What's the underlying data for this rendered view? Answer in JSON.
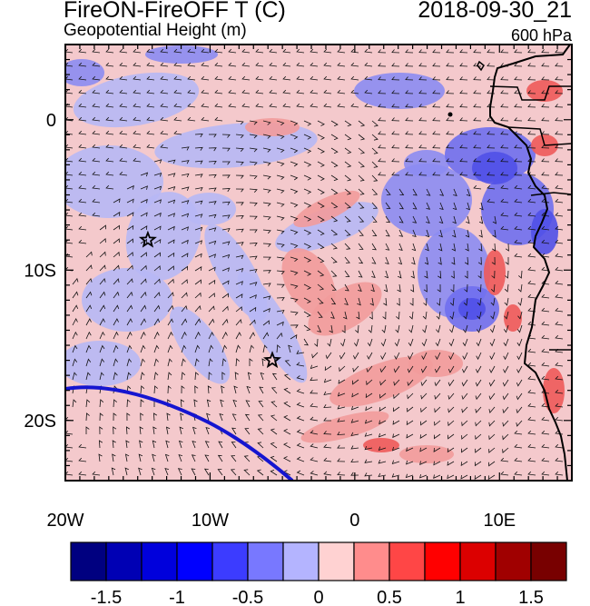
{
  "title": "FireON-FireOFF T (C)",
  "subtitle": "Geopotential Height (m)",
  "datetime": "2018-09-30_21",
  "level": "600 hPa",
  "map": {
    "lon_range": [
      -20,
      15
    ],
    "lat_range": [
      -24,
      5
    ],
    "x_ticks": [
      {
        "value": -20,
        "label": "20W"
      },
      {
        "value": -10,
        "label": "10W"
      },
      {
        "value": 0,
        "label": "0"
      },
      {
        "value": 10,
        "label": "10E"
      }
    ],
    "y_ticks": [
      {
        "value": 0,
        "label": "0"
      },
      {
        "value": -10,
        "label": "10S"
      },
      {
        "value": -20,
        "label": "20S"
      }
    ],
    "markers": [
      {
        "name": "star-marker-1",
        "lon": -14.3,
        "lat": -8
      },
      {
        "name": "star-marker-2",
        "lon": -5.7,
        "lat": -16
      }
    ]
  },
  "colorbar": {
    "colors": [
      "#000080",
      "#0000b4",
      "#0000dc",
      "#0000ff",
      "#3c3cff",
      "#7878ff",
      "#b4b4ff",
      "#ffd2d2",
      "#ff8c8c",
      "#ff4646",
      "#ff0000",
      "#dc0000",
      "#a00000",
      "#780000"
    ],
    "labels": [
      "-1.5",
      "-1",
      "-0.5",
      "0",
      "0.5",
      "1",
      "1.5"
    ]
  }
}
